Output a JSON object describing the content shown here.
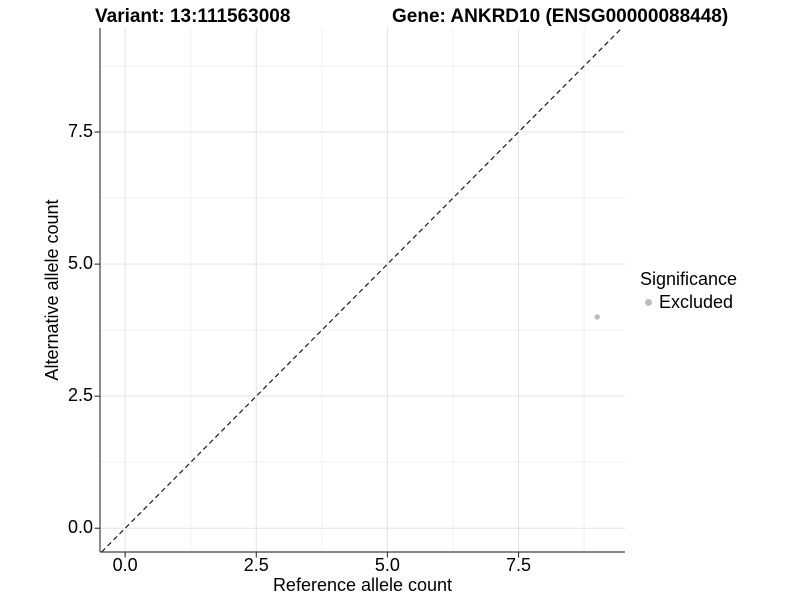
{
  "header": {
    "title_left": "Variant: 13:111563008",
    "title_right": "Gene: ANKRD10 (ENSG00000088448)"
  },
  "chart_data": {
    "type": "scatter",
    "title_left": "Variant: 13:111563008",
    "title_right": "Gene: ANKRD10 (ENSG00000088448)",
    "xlabel": "Reference allele count",
    "ylabel": "Alternative allele count",
    "xlim": [
      -0.48,
      9.53
    ],
    "ylim": [
      -0.45,
      9.47
    ],
    "x_ticks": {
      "values": [
        0,
        2.5,
        5,
        7.5
      ],
      "labels": [
        "0.0",
        "2.5",
        "5.0",
        "7.5"
      ]
    },
    "y_ticks": {
      "values": [
        0,
        2.5,
        5,
        7.5
      ],
      "labels": [
        "0.0",
        "2.5",
        "5.0",
        "7.5"
      ]
    },
    "x_minor_ticks": [
      1.25,
      3.75,
      6.25,
      8.75
    ],
    "y_minor_ticks": [
      1.25,
      3.75,
      6.25,
      8.75
    ],
    "grid": true,
    "legend_position": "right",
    "series": [
      {
        "name": "Excluded",
        "color": "#bdbdbd",
        "points": [
          {
            "x": 9,
            "y": 4
          }
        ]
      }
    ],
    "reference_line": {
      "kind": "identity",
      "equation": "y = x",
      "style": "dashed",
      "color": "#1a1a1a"
    },
    "legend": {
      "title": "Significance",
      "entries": [
        {
          "label": "Excluded",
          "color": "#bdbdbd"
        }
      ]
    }
  },
  "style_colors": {
    "background": "#ffffff",
    "grid_major": "#e3e3e3",
    "grid_minor": "#f0f0f0",
    "axis_line": "#404040",
    "tick_mark": "#333333",
    "text": "#000000",
    "point": "#bdbdbd"
  }
}
